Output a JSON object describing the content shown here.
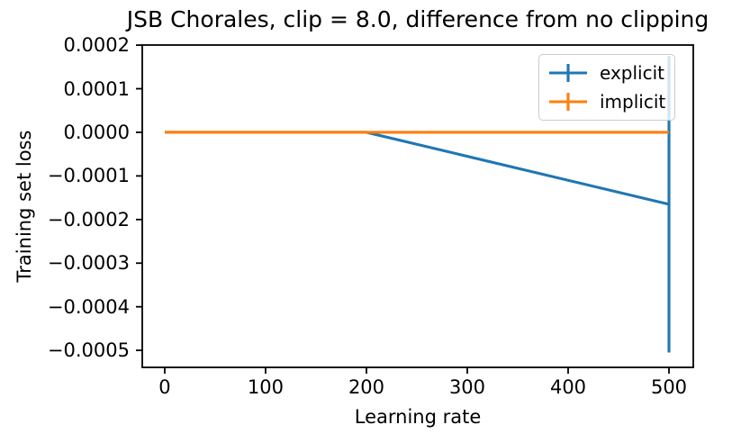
{
  "chart_data": {
    "type": "line",
    "title": "JSB Chorales, clip = 8.0, difference from no clipping",
    "xlabel": "Learning rate",
    "ylabel": "Training set loss",
    "xlim": [
      -22.3,
      524.1
    ],
    "ylim": [
      -0.000539,
      0.0002002
    ],
    "grid": false,
    "background_color": "#ffffff",
    "axis_color": "#000000",
    "legend": {
      "position": "upper right",
      "border_color": "#cccccc"
    },
    "x_ticks": {
      "values": [
        0,
        100,
        200,
        300,
        400,
        500
      ],
      "labels": [
        "0",
        "100",
        "200",
        "300",
        "400",
        "500"
      ]
    },
    "y_ticks": {
      "values": [
        0.0002,
        0.0001,
        0.0,
        -0.0001,
        -0.0002,
        -0.0003,
        -0.0004,
        -0.0005
      ],
      "labels": [
        "0.0002",
        "0.0001",
        "0.0000",
        "−0.0001",
        "−0.0002",
        "−0.0003",
        "−0.0004",
        "−0.0005"
      ]
    },
    "series": [
      {
        "name": "explicit",
        "color": "#1f77b4",
        "x": [
          0,
          200,
          500
        ],
        "y": [
          0,
          0,
          -0.000165
        ],
        "error_bars": [
          {
            "x": 500,
            "y_low": -0.000505,
            "y_high": 0.000175
          }
        ]
      },
      {
        "name": "implicit",
        "color": "#ff7f0e",
        "x": [
          0,
          500
        ],
        "y": [
          0,
          0
        ],
        "error_bars": []
      }
    ]
  }
}
